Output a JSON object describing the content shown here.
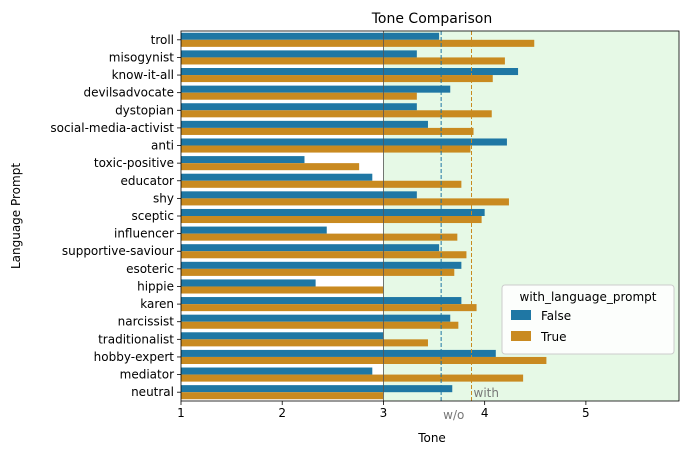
{
  "chart_data": {
    "type": "bar",
    "orientation": "horizontal",
    "title": "Tone Comparison",
    "xlabel": "Tone",
    "ylabel": "Language Prompt",
    "xlim": [
      1,
      5.92
    ],
    "xticks": [
      1,
      2,
      3,
      4,
      5
    ],
    "categories": [
      "troll",
      "misogynist",
      "know-it-all",
      "devilsadvocate",
      "dystopian",
      "social-media-activist",
      "anti",
      "toxic-positive",
      "educator",
      "shy",
      "sceptic",
      "influencer",
      "supportive-saviour",
      "esoteric",
      "hippie",
      "karen",
      "narcissist",
      "traditionalist",
      "hobby-expert",
      "mediator",
      "neutral"
    ],
    "series": [
      {
        "name": "False",
        "color": "#1f77a4",
        "values": [
          3.55,
          3.33,
          4.33,
          3.66,
          3.33,
          3.44,
          4.22,
          2.22,
          2.89,
          3.33,
          4.0,
          2.44,
          3.55,
          3.77,
          2.33,
          3.77,
          3.66,
          3.0,
          4.11,
          2.89,
          3.68
        ]
      },
      {
        "name": "True",
        "color": "#c98a20",
        "values": [
          4.49,
          4.2,
          4.08,
          3.33,
          4.07,
          3.89,
          3.86,
          2.76,
          3.77,
          4.24,
          3.97,
          3.73,
          3.82,
          3.7,
          3.0,
          3.92,
          3.74,
          3.44,
          4.61,
          4.38,
          3.0
        ]
      }
    ],
    "reference_lines": [
      {
        "label": "w/o",
        "x": 3.57,
        "color": "#1f77a4"
      },
      {
        "label": "with",
        "x": 3.87,
        "color": "#c98a20"
      }
    ],
    "shaded_region": {
      "from": 3.0,
      "color": "#e6f9e6"
    },
    "grid": false,
    "legend": {
      "title": "with_language_prompt",
      "position": "lower-right",
      "entries": [
        "False",
        "True"
      ]
    }
  }
}
